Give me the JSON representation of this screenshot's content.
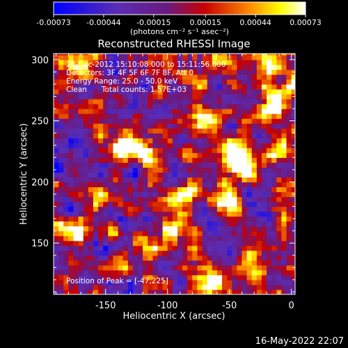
{
  "colorbar": {
    "ticks": [
      "-0.00073",
      "-0.00044",
      "-0.00015",
      "0.00015",
      "0.00044",
      "0.00073"
    ],
    "tick_values": [
      -0.00073,
      -0.00044,
      -0.00015,
      0.00015,
      0.00044,
      0.00073
    ],
    "range": [
      -0.00073,
      0.00073
    ],
    "units_label": "(photons cm⁻² s⁻¹ asec⁻²)",
    "palette": "blue-purple-red-yellow-white"
  },
  "chart_data": {
    "type": "heatmap",
    "title": "Reconstructed RHESSI Image",
    "xlabel": "Heliocentric X (arcsec)",
    "ylabel": "Heliocentric Y (arcsec)",
    "xlim": [
      -192,
      3
    ],
    "ylim": [
      108,
      305
    ],
    "xticks": [
      -150,
      -100,
      -50,
      0
    ],
    "yticks": [
      150,
      200,
      250,
      300
    ],
    "grid": false,
    "peak": {
      "x": -47,
      "y": 225
    },
    "blobs": [
      {
        "x": -47,
        "y": 225,
        "level": 1.0
      },
      {
        "x": -135,
        "y": 230,
        "level": 0.85
      },
      {
        "x": -120,
        "y": 225,
        "level": 0.8
      },
      {
        "x": -90,
        "y": 192,
        "level": 0.9
      },
      {
        "x": -55,
        "y": 185,
        "level": 0.85
      },
      {
        "x": -38,
        "y": 210,
        "level": 0.75
      },
      {
        "x": -25,
        "y": 255,
        "level": 0.7
      },
      {
        "x": -10,
        "y": 270,
        "level": 0.8
      },
      {
        "x": -170,
        "y": 295,
        "level": 0.85
      },
      {
        "x": -180,
        "y": 160,
        "level": 0.75
      },
      {
        "x": -60,
        "y": 300,
        "level": 0.85
      },
      {
        "x": -70,
        "y": 250,
        "level": 0.7
      },
      {
        "x": -110,
        "y": 145,
        "level": 0.75
      },
      {
        "x": -65,
        "y": 115,
        "level": 0.85
      },
      {
        "x": -30,
        "y": 130,
        "level": 0.7
      },
      {
        "x": -150,
        "y": 190,
        "level": 0.6
      },
      {
        "x": -10,
        "y": 225,
        "level": 0.65
      },
      {
        "x": -95,
        "y": 165,
        "level": 0.6
      },
      {
        "x": -160,
        "y": 250,
        "level": 0.55
      },
      {
        "x": -5,
        "y": 170,
        "level": 0.6
      },
      {
        "x": -130,
        "y": 130,
        "level": 0.55
      },
      {
        "x": -80,
        "y": 280,
        "level": 0.5
      },
      {
        "x": -20,
        "y": 295,
        "level": 0.6
      }
    ]
  },
  "annotations": {
    "time_range": "24-Dec-2012 15:10:08.000 to 15:11:56.000",
    "detectors": "Detectors: 3F 4F 5F 6F 7F 8F, Att 0",
    "energy": "Energy Range: 25.0 - 50.0 keV",
    "clean": "Clean",
    "total_counts": "Total counts: 1.57E+03",
    "peak": "Position of Peak = [-47,225]"
  },
  "footer": {
    "date": "16-May-2022 22:07"
  }
}
